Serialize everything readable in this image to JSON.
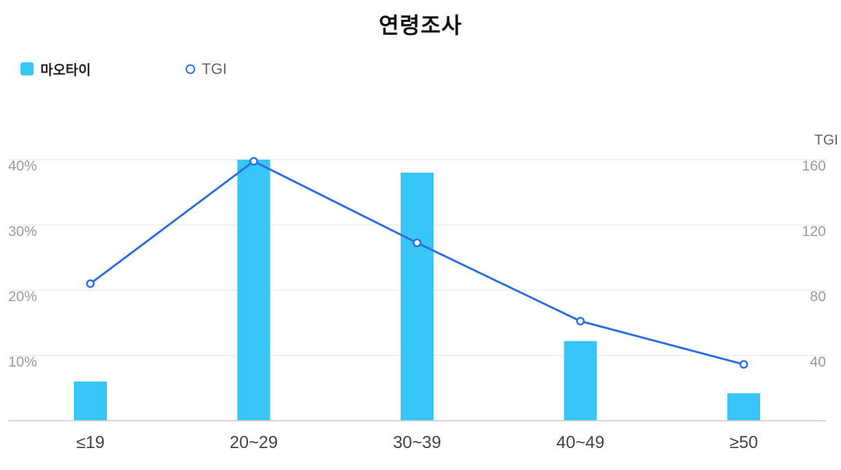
{
  "chart_data": {
    "type": "bar",
    "title": "연령조사",
    "categories": [
      "≤19",
      "20~29",
      "30~39",
      "40~49",
      "≥50"
    ],
    "series": [
      {
        "name": "마오타이",
        "type": "bar",
        "axis": "left",
        "color": "#38c6f8",
        "values": [
          6,
          40,
          38,
          12.2,
          4.2
        ]
      },
      {
        "name": "TGI",
        "type": "line",
        "axis": "right",
        "color": "#2a6ee0",
        "values": [
          84,
          159,
          109,
          61,
          34.5
        ]
      }
    ],
    "y_left": {
      "label": "",
      "min": 0,
      "max": 40,
      "ticks": [
        10,
        20,
        30,
        40
      ],
      "tick_labels": [
        "10%",
        "20%",
        "30%",
        "40%"
      ]
    },
    "y_right": {
      "label": "TGI",
      "min": 0,
      "max": 160,
      "ticks": [
        40,
        80,
        120,
        160
      ],
      "tick_labels": [
        "40",
        "80",
        "120",
        "160"
      ]
    },
    "grid": true,
    "legend_position": "top-left"
  }
}
